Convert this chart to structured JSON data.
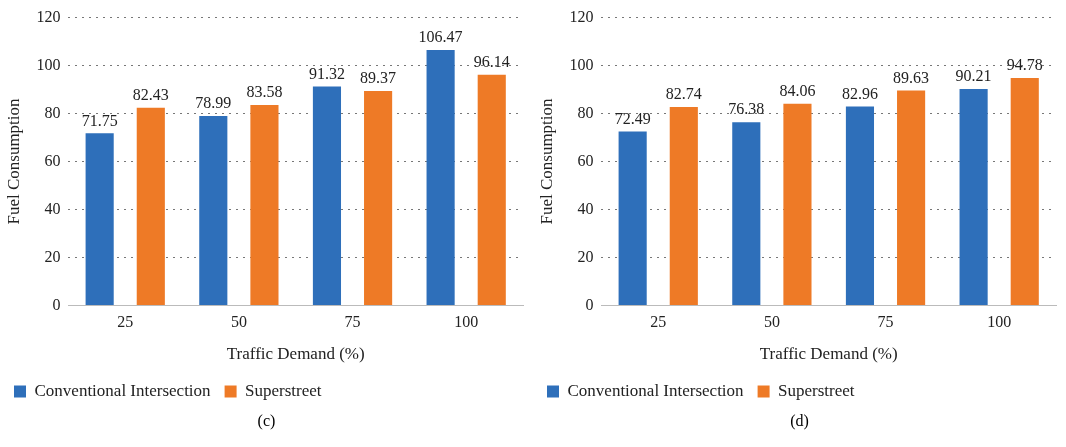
{
  "chart_data": [
    {
      "type": "bar",
      "xlabel": "Traffic Demand (%)",
      "ylabel": "Fuel Consumption",
      "categories": [
        "25",
        "50",
        "75",
        "100"
      ],
      "series": [
        {
          "name": "Conventional Intersection",
          "color": "#2e6fba",
          "values": [
            71.75,
            78.99,
            91.32,
            106.47
          ]
        },
        {
          "name": "Superstreet",
          "color": "#ee7a26",
          "values": [
            82.43,
            83.58,
            89.37,
            96.14
          ]
        }
      ],
      "ylim": [
        0,
        120
      ],
      "yticks": [
        0,
        20,
        40,
        60,
        80,
        100,
        120
      ],
      "grid": "y",
      "legend": "bottom left",
      "data_labels": true,
      "annotations": [
        "(c)"
      ]
    },
    {
      "type": "bar",
      "xlabel": "Traffic Demand (%)",
      "ylabel": "Fuel Consumption",
      "categories": [
        "25",
        "50",
        "75",
        "100"
      ],
      "series": [
        {
          "name": "Conventional Intersection",
          "color": "#2e6fba",
          "values": [
            72.49,
            76.38,
            82.96,
            90.21
          ]
        },
        {
          "name": "Superstreet",
          "color": "#ee7a26",
          "values": [
            82.74,
            84.06,
            89.63,
            94.78
          ]
        }
      ],
      "ylim": [
        0,
        120
      ],
      "yticks": [
        0,
        20,
        40,
        60,
        80,
        100,
        120
      ],
      "grid": "y",
      "legend": "bottom left",
      "data_labels": true,
      "annotations": [
        "(d)"
      ]
    }
  ]
}
